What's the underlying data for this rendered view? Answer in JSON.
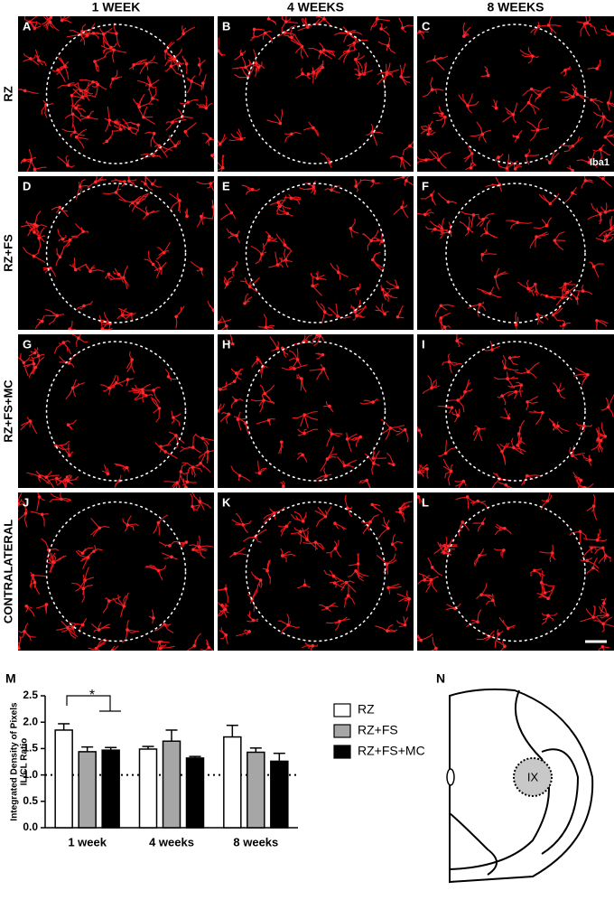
{
  "figure": {
    "columns": [
      "1 WEEK",
      "4 WEEKS",
      "8 WEEKS"
    ],
    "rows": [
      "RZ",
      "RZ+FS",
      "RZ+FS+MC",
      "CONTRALATERAL"
    ],
    "panel_letters": [
      "A",
      "B",
      "C",
      "D",
      "E",
      "F",
      "G",
      "H",
      "I",
      "J",
      "K",
      "L"
    ],
    "stain_label": "Iba1",
    "chart_letter": "M",
    "diagram": {
      "letter": "N",
      "region": "IX"
    }
  },
  "chart_data": {
    "type": "bar",
    "y_label": [
      "Integrated Density of Pixels",
      "IL/CL Ratio"
    ],
    "categories": [
      "1 week",
      "4 weeks",
      "8 weeks"
    ],
    "series": [
      {
        "name": "RZ",
        "color": "#ffffff",
        "values": [
          1.85,
          1.49,
          1.72
        ],
        "errors": [
          0.12,
          0.05,
          0.22
        ]
      },
      {
        "name": "RZ+FS",
        "color": "#a6a6a6",
        "values": [
          1.44,
          1.64,
          1.43
        ],
        "errors": [
          0.09,
          0.21,
          0.08
        ]
      },
      {
        "name": "RZ+FS+MC",
        "color": "#000000",
        "values": [
          1.47,
          1.32,
          1.26
        ],
        "errors": [
          0.05,
          0.03,
          0.15
        ]
      }
    ],
    "ylim": [
      0,
      2.5
    ],
    "yticks": [
      {
        "value": 0,
        "label": "0.0"
      },
      0.5,
      {
        "value": 1,
        "label": "1.0"
      },
      1.5,
      {
        "value": 2,
        "label": "2.0"
      },
      2.5
    ],
    "reference_line": 1,
    "annotation": "*"
  }
}
